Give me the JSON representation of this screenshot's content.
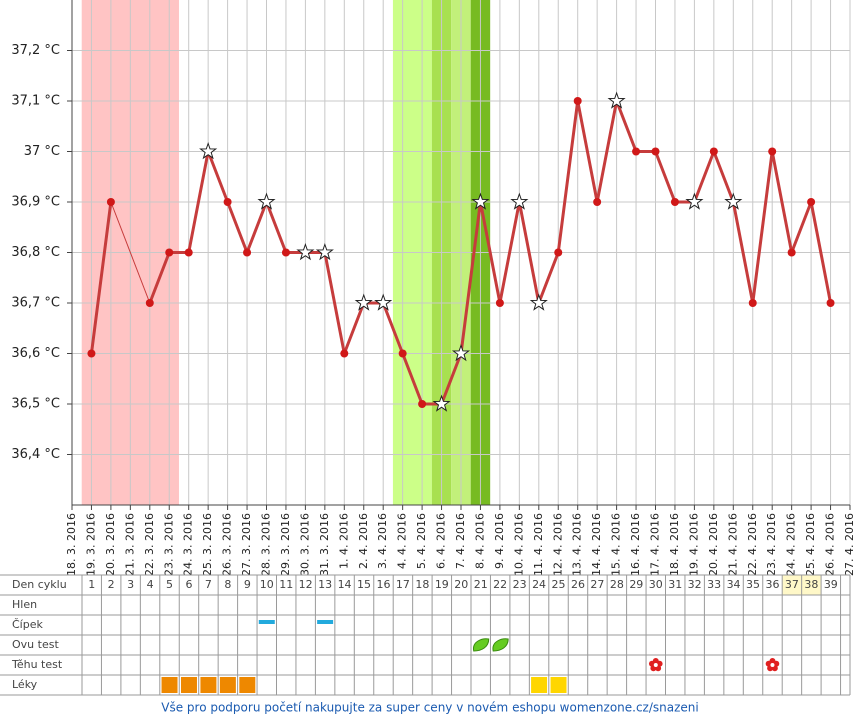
{
  "chart_data": {
    "type": "line",
    "categories": [
      "18. 3. 2016",
      "19. 3. 2016",
      "20. 3. 2016",
      "21. 3. 2016",
      "22. 3. 2016",
      "23. 3. 2016",
      "24. 3. 2016",
      "25. 3. 2016",
      "26. 3. 2016",
      "27. 3. 2016",
      "28. 3. 2016",
      "29. 3. 2016",
      "30. 3. 2016",
      "31. 3. 2016",
      "1. 4. 2016",
      "2. 4. 2016",
      "3. 4. 2016",
      "4. 4. 2016",
      "5. 4. 2016",
      "6. 4. 2016",
      "7. 4. 2016",
      "8. 4. 2016",
      "9. 4. 2016",
      "10. 4. 2016",
      "11. 4. 2016",
      "12. 4. 2016",
      "13. 4. 2016",
      "14. 4. 2016",
      "15. 4. 2016",
      "16. 4. 2016",
      "17. 4. 2016",
      "18. 4. 2016",
      "19. 4. 2016",
      "20. 4. 2016",
      "21. 4. 2016",
      "22. 4. 2016",
      "23. 4. 2016",
      "24. 4. 2016",
      "25. 4. 2016",
      "26. 4. 2016",
      "27. 4. 2016"
    ],
    "values": [
      null,
      36.6,
      36.9,
      null,
      36.7,
      36.8,
      36.8,
      37.0,
      36.9,
      36.8,
      36.9,
      36.8,
      36.8,
      36.8,
      36.6,
      36.7,
      36.7,
      36.6,
      36.5,
      36.5,
      36.6,
      36.9,
      36.7,
      36.9,
      36.7,
      36.8,
      37.1,
      36.9,
      37.1,
      37.0,
      37.0,
      36.9,
      36.9,
      37.0,
      36.9,
      36.7,
      37.0,
      36.8,
      36.9,
      36.7,
      null
    ],
    "color": "#c63c3c",
    "star_points": [
      7,
      10,
      12,
      13,
      15,
      16,
      19,
      20,
      21,
      23,
      24,
      28,
      32,
      34
    ],
    "ylim": [
      36.3,
      37.3
    ],
    "yticks": [
      {
        "value": 37.2,
        "label": "37,2 °C"
      },
      {
        "value": 37.1,
        "label": "37,1 °C"
      },
      {
        "value": 37,
        "label": "37 °C"
      },
      {
        "value": 36.9,
        "label": "36,9 °C"
      },
      {
        "value": 36.8,
        "label": "36,8 °C"
      },
      {
        "value": 36.7,
        "label": "36,7 °C"
      },
      {
        "value": 36.6,
        "label": "36,6 °C"
      },
      {
        "value": 36.5,
        "label": "36,5 °C"
      },
      {
        "value": 36.4,
        "label": "36,4 °C"
      }
    ],
    "grid": true,
    "bands": [
      {
        "from": 1,
        "to": 5,
        "color": "#ffc4c4"
      },
      {
        "from": 17,
        "to": 18,
        "color": "#ccff88"
      },
      {
        "from": 19,
        "to": 19,
        "color": "#a8e050"
      },
      {
        "from": 20,
        "to": 20,
        "color": "#c2f07a"
      },
      {
        "from": 21,
        "to": 21,
        "color": "#77bb22"
      }
    ]
  },
  "table": {
    "header": "Den cyklu",
    "days": [
      1,
      2,
      3,
      4,
      5,
      6,
      7,
      8,
      9,
      10,
      11,
      12,
      13,
      14,
      15,
      16,
      17,
      18,
      19,
      20,
      21,
      22,
      23,
      24,
      25,
      26,
      27,
      28,
      29,
      30,
      31,
      32,
      33,
      34,
      35,
      36,
      37,
      38,
      39
    ],
    "highlight_days": [
      37,
      38
    ],
    "highlight_color": "#fff8c8",
    "rows": [
      {
        "label": "Hlen",
        "days": []
      },
      {
        "label": "Čípek",
        "icon": "dash",
        "days": [
          10,
          13
        ]
      },
      {
        "label": "Ovu test",
        "icon": "leaf",
        "days": [
          21,
          22
        ]
      },
      {
        "label": "Těhu test",
        "icon": "flower",
        "days": [
          30,
          36
        ]
      },
      {
        "label": "Léky",
        "icon": "square",
        "days": [
          5,
          6,
          7,
          8,
          9,
          24,
          25
        ],
        "colors": [
          "#ee8800",
          "#ee8800",
          "#ee8800",
          "#ee8800",
          "#ee8800",
          "#ffd600",
          "#ffd600"
        ]
      }
    ]
  },
  "footer": "Vše pro podporu početí nakupujte za super ceny v novém eshopu womenzone.cz/snazeni"
}
